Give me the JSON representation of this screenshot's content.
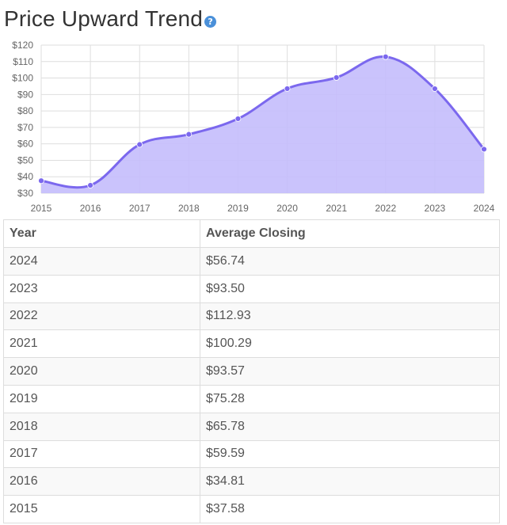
{
  "title": "Price Upward Trend",
  "help_icon": "question-circle-icon",
  "chart_data": {
    "type": "area",
    "title": "",
    "xlabel": "",
    "ylabel": "",
    "x": [
      "2015",
      "2016",
      "2017",
      "2018",
      "2019",
      "2020",
      "2021",
      "2022",
      "2023",
      "2024"
    ],
    "series": [
      {
        "values": [
          37.58,
          34.81,
          59.59,
          65.78,
          75.28,
          93.57,
          100.29,
          112.93,
          93.5,
          56.74
        ]
      }
    ],
    "ylim": [
      30,
      120
    ],
    "yticks": [
      "$30",
      "$40",
      "$50",
      "$60",
      "$70",
      "$80",
      "$90",
      "$100",
      "$110",
      "$120"
    ],
    "grid": true,
    "legend": "none",
    "line_color": "#7b68ee",
    "fill_color": "#c4bcfc"
  },
  "table": {
    "headers": [
      "Year",
      "Average Closing"
    ],
    "rows": [
      [
        "2024",
        "$56.74"
      ],
      [
        "2023",
        "$93.50"
      ],
      [
        "2022",
        "$112.93"
      ],
      [
        "2021",
        "$100.29"
      ],
      [
        "2020",
        "$93.57"
      ],
      [
        "2019",
        "$75.28"
      ],
      [
        "2018",
        "$65.78"
      ],
      [
        "2017",
        "$59.59"
      ],
      [
        "2016",
        "$34.81"
      ],
      [
        "2015",
        "$37.58"
      ]
    ]
  }
}
